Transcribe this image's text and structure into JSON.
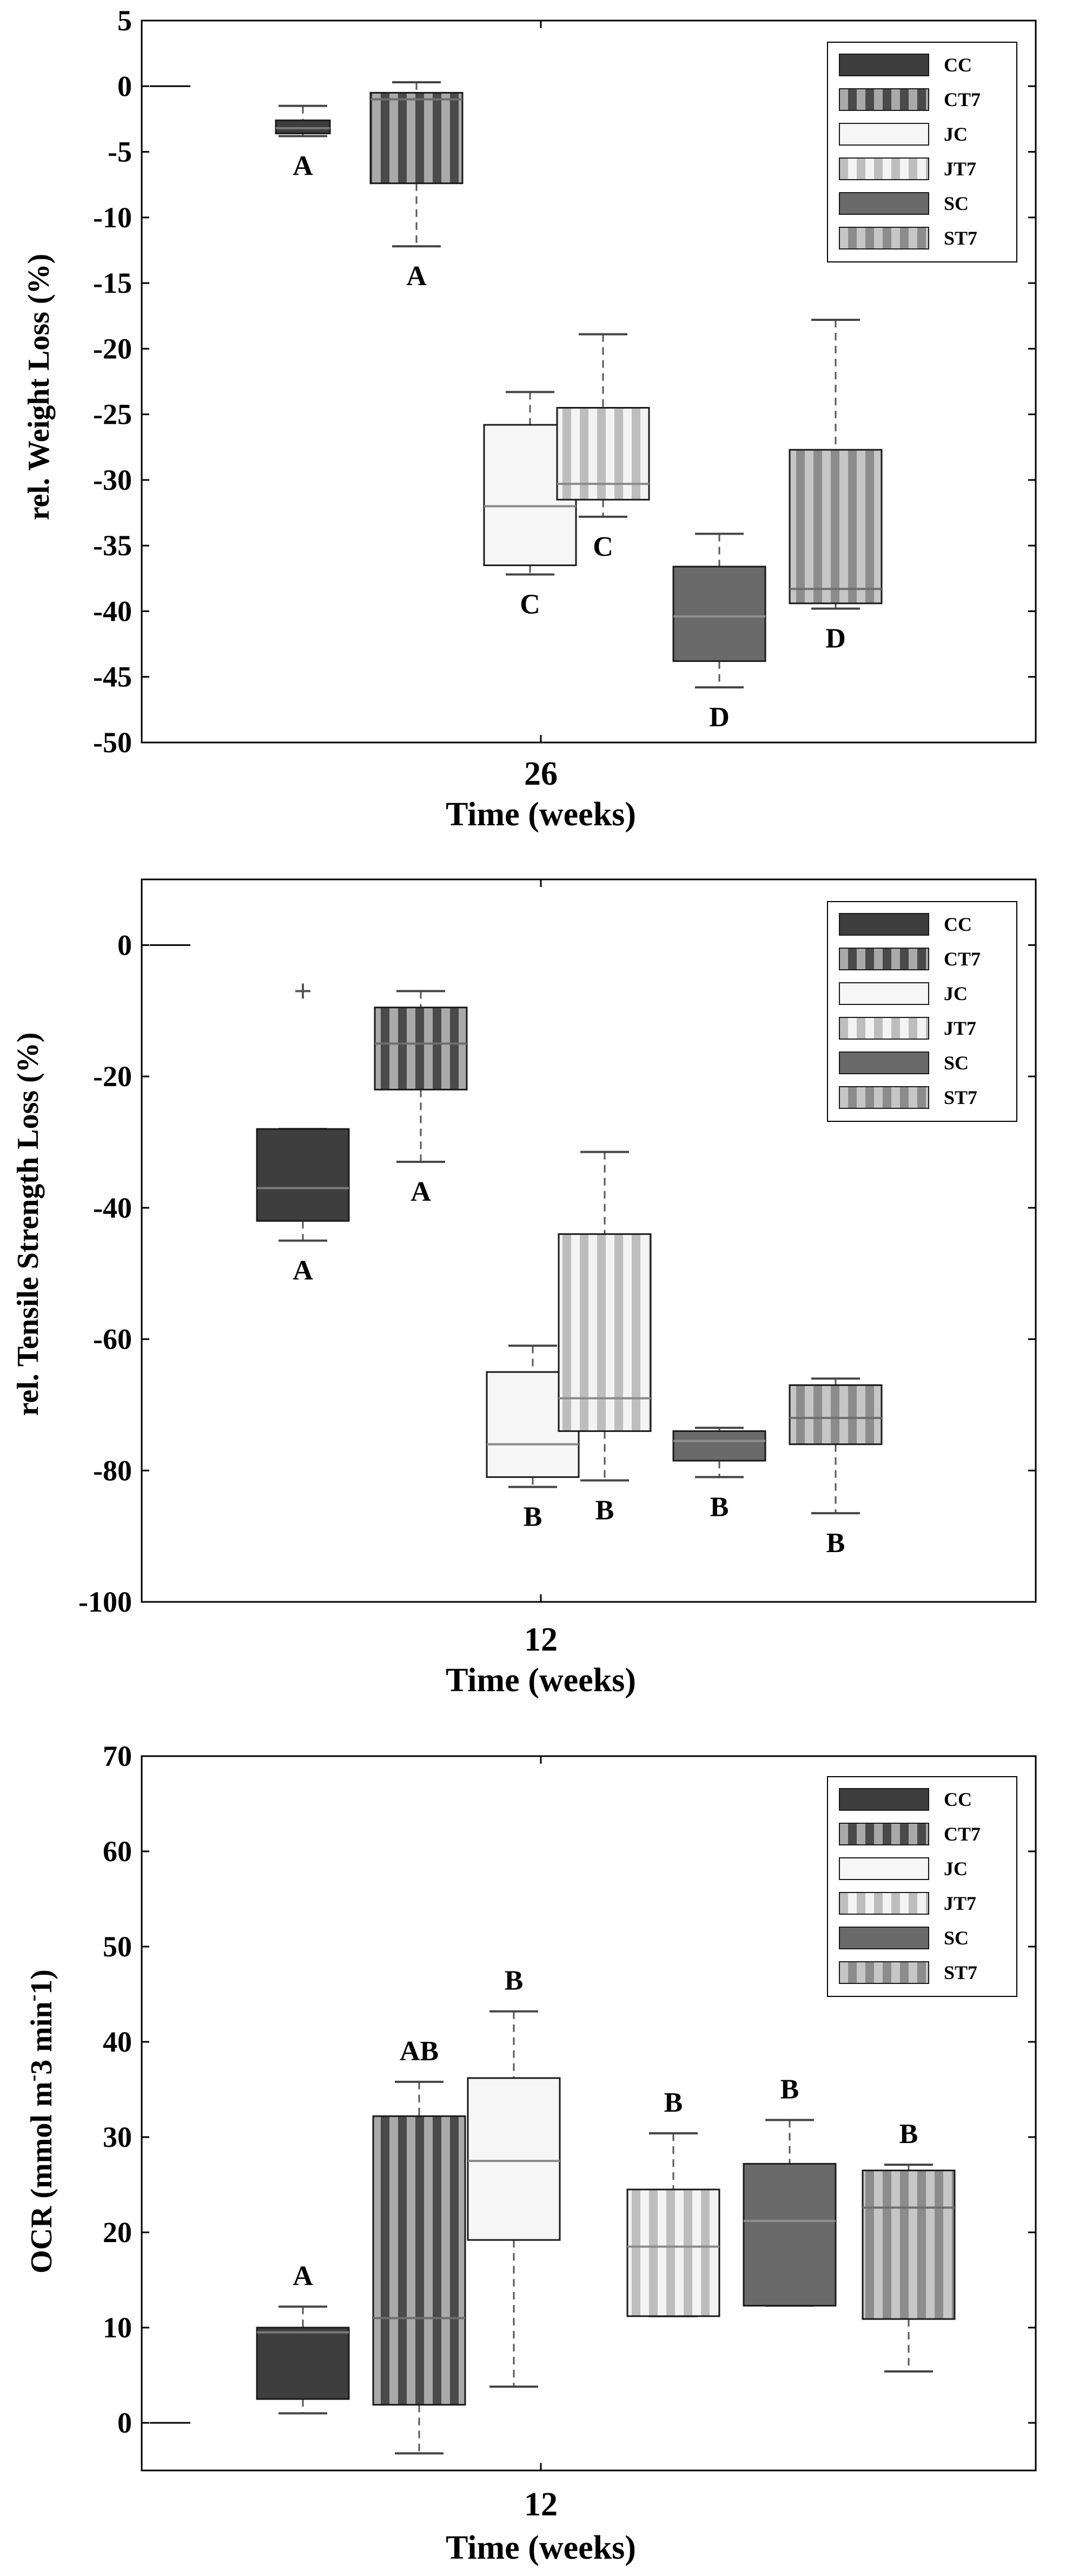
{
  "chart_data": [
    {
      "type": "box",
      "xlabel": "Time (weeks)",
      "x_tick": "26",
      "ylabel": "rel. Weight Loss (%)",
      "ylim": [
        -50,
        5
      ],
      "yticks": [
        5,
        0,
        -5,
        -10,
        -15,
        -20,
        -25,
        -30,
        -35,
        -40,
        -45,
        -50
      ],
      "legend_position": "top-right",
      "legend": [
        "CC",
        "CT7",
        "JC",
        "JT7",
        "SC",
        "ST7"
      ],
      "series": [
        {
          "name": "CC",
          "min": -3.8,
          "q1": -3.6,
          "median": -3.2,
          "q3": -2.6,
          "max": -1.5,
          "letter": "A"
        },
        {
          "name": "CT7",
          "min": -12.2,
          "q1": -7.4,
          "median": -1.0,
          "q3": -0.5,
          "max": 0.3,
          "letter": "A"
        },
        {
          "name": "JC",
          "min": -37.2,
          "q1": -36.5,
          "median": -32.0,
          "q3": -25.8,
          "max": -23.3,
          "letter": "C"
        },
        {
          "name": "JT7",
          "min": -32.8,
          "q1": -31.5,
          "median": -30.3,
          "q3": -24.5,
          "max": -18.9,
          "letter": "C"
        },
        {
          "name": "SC",
          "min": -45.8,
          "q1": -43.8,
          "median": -40.4,
          "q3": -36.6,
          "max": -34.1,
          "letter": "D"
        },
        {
          "name": "ST7",
          "min": -39.8,
          "q1": -39.4,
          "median": -38.3,
          "q3": -27.7,
          "max": -17.8,
          "letter": "D"
        }
      ],
      "outliers": []
    },
    {
      "type": "box",
      "xlabel": "Time (weeks)",
      "x_tick": "12",
      "ylabel": "rel. Tensile Strength Loss (%)",
      "ylim": [
        -100,
        10
      ],
      "yticks": [
        0,
        -20,
        -40,
        -60,
        -80,
        -100
      ],
      "legend_position": "top-right",
      "legend": [
        "CC",
        "CT7",
        "JC",
        "JT7",
        "SC",
        "ST7"
      ],
      "series": [
        {
          "name": "CC",
          "min": -45,
          "q1": -42,
          "median": -37,
          "q3": -28,
          "max": -28,
          "letter": "A"
        },
        {
          "name": "CT7",
          "min": -33,
          "q1": -22,
          "median": -15,
          "q3": -9.5,
          "max": -7,
          "letter": "A"
        },
        {
          "name": "JC",
          "min": -82.5,
          "q1": -81,
          "median": -76,
          "q3": -65,
          "max": -61,
          "letter": "B"
        },
        {
          "name": "JT7",
          "min": -81.5,
          "q1": -74,
          "median": -69,
          "q3": -44,
          "max": -31.5,
          "letter": "B"
        },
        {
          "name": "SC",
          "min": -81,
          "q1": -78.5,
          "median": -75.5,
          "q3": -74,
          "max": -73.5,
          "letter": "B"
        },
        {
          "name": "ST7",
          "min": -86.5,
          "q1": -76,
          "median": -72,
          "q3": -67,
          "max": -66,
          "letter": "B"
        }
      ],
      "outliers": [
        {
          "series": "CC",
          "value": -7
        }
      ]
    },
    {
      "type": "box",
      "xlabel": "Time (weeks)",
      "x_tick": "12",
      "ylabel": "OCR (mmol m-3 min-1)",
      "ylim": [
        -5,
        70
      ],
      "yticks": [
        70,
        60,
        50,
        40,
        30,
        20,
        10,
        0
      ],
      "legend_position": "top-right",
      "legend": [
        "CC",
        "CT7",
        "JC",
        "JT7",
        "SC",
        "ST7"
      ],
      "series": [
        {
          "name": "CC",
          "min": 1,
          "q1": 2.5,
          "median": 9.5,
          "q3": 10,
          "max": 12.2,
          "letter": "A"
        },
        {
          "name": "CT7",
          "min": -3.2,
          "q1": 1.9,
          "median": 11,
          "q3": 32.2,
          "max": 35.8,
          "letter": "AB"
        },
        {
          "name": "JC",
          "min": 3.8,
          "q1": 19.2,
          "median": 27.5,
          "q3": 36.2,
          "max": 43.2,
          "letter": "B"
        },
        {
          "name": "JT7",
          "min": 11.2,
          "q1": 11.2,
          "median": 18.5,
          "q3": 24.5,
          "max": 30.4,
          "letter": "B"
        },
        {
          "name": "SC",
          "min": 12.3,
          "q1": 12.3,
          "median": 21.2,
          "q3": 27.2,
          "max": 31.8,
          "letter": "B"
        },
        {
          "name": "ST7",
          "min": 5.4,
          "q1": 10.9,
          "median": 22.6,
          "q3": 26.5,
          "max": 27.1,
          "letter": "B"
        }
      ],
      "outliers": []
    }
  ],
  "styles": {
    "CC": {
      "fill": "#3e3e3e",
      "stripe": "",
      "median": "#7a7a7a"
    },
    "CT7": {
      "fill": "#4a4a4a",
      "stripe": "#a9a9a9",
      "median": "#6e6e6e"
    },
    "JC": {
      "fill": "#f6f6f6",
      "stripe": "",
      "median": "#8a8a8a"
    },
    "JT7": {
      "fill": "#f3f3f3",
      "stripe": "#bdbdbd",
      "median": "#8a8a8a"
    },
    "SC": {
      "fill": "#6a6a6a",
      "stripe": "",
      "median": "#8f8f8f"
    },
    "ST7": {
      "fill": "#8c8c8c",
      "stripe": "#c6c6c6",
      "median": "#6e6e6e"
    }
  }
}
